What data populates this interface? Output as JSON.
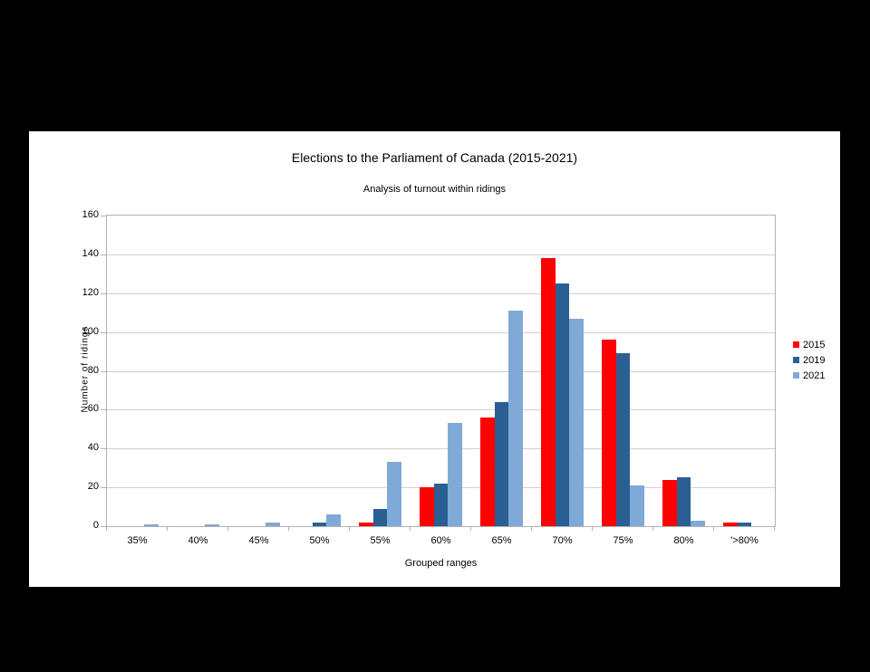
{
  "chart_data": {
    "type": "bar",
    "title": "Elections to the Parliament of Canada (2015-2021)",
    "subtitle": "Analysis of turnout within ridings",
    "xlabel": "Grouped ranges",
    "ylabel": "Number of ridings",
    "categories": [
      "35%",
      "40%",
      "45%",
      "50%",
      "55%",
      "60%",
      "65%",
      "70%",
      "75%",
      "80%",
      "'>80%"
    ],
    "series": [
      {
        "name": "2015",
        "color": "#ff0000",
        "values": [
          0,
          0,
          0,
          0,
          2,
          20,
          56,
          138,
          96,
          24,
          2
        ]
      },
      {
        "name": "2019",
        "color": "#2a5f93",
        "values": [
          0,
          0,
          0,
          2,
          9,
          22,
          64,
          125,
          89,
          25,
          2
        ]
      },
      {
        "name": "2021",
        "color": "#7fa9d7",
        "values": [
          1,
          1,
          2,
          6,
          33,
          53,
          111,
          107,
          21,
          3,
          0
        ]
      }
    ],
    "ylim": [
      0,
      160
    ],
    "ytick_step": 20,
    "grid": "horizontal",
    "legend_position": "right"
  },
  "frame": {
    "background_color": "#000000",
    "chart_background_color": "#ffffff",
    "axis_line_color": "#b3b3b3",
    "gridline_color": "#d0d0d0"
  }
}
